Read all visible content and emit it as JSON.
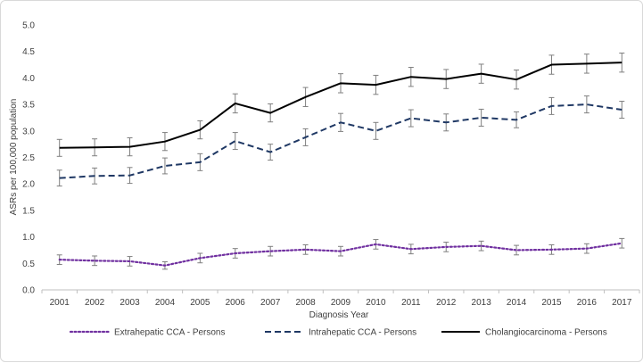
{
  "chart_data": {
    "type": "line",
    "title": "",
    "xlabel": "Diagnosis Year",
    "ylabel": "ASRs per  100,000 population",
    "categories": [
      "2001",
      "2002",
      "2003",
      "2004",
      "2005",
      "2006",
      "2007",
      "2008",
      "2009",
      "2010",
      "2011",
      "2012",
      "2013",
      "2014",
      "2015",
      "2016",
      "2017"
    ],
    "yticks": [
      "0.0",
      "0.5",
      "1.0",
      "1.5",
      "2.0",
      "2.5",
      "3.0",
      "3.5",
      "4.0",
      "4.5",
      "5.0"
    ],
    "ylim": [
      0,
      5
    ],
    "grid": false,
    "legend_position": "bottom",
    "series": [
      {
        "name": "Extrahepatic CCA - Persons",
        "style": "dotted",
        "color": "#7030a0",
        "values": [
          0.57,
          0.55,
          0.54,
          0.46,
          0.6,
          0.69,
          0.73,
          0.76,
          0.73,
          0.86,
          0.77,
          0.81,
          0.83,
          0.75,
          0.76,
          0.78,
          0.88
        ],
        "errors": [
          0.09,
          0.09,
          0.09,
          0.07,
          0.09,
          0.09,
          0.09,
          0.09,
          0.09,
          0.09,
          0.09,
          0.09,
          0.09,
          0.09,
          0.09,
          0.09,
          0.09
        ]
      },
      {
        "name": "Intrahepatic CCA - Persons",
        "style": "dashed",
        "color": "#1f3864",
        "values": [
          2.11,
          2.15,
          2.16,
          2.34,
          2.41,
          2.81,
          2.6,
          2.88,
          3.16,
          3.0,
          3.24,
          3.16,
          3.25,
          3.21,
          3.47,
          3.5,
          3.4
        ],
        "errors": [
          0.15,
          0.15,
          0.15,
          0.15,
          0.16,
          0.16,
          0.15,
          0.16,
          0.17,
          0.16,
          0.16,
          0.16,
          0.16,
          0.15,
          0.16,
          0.16,
          0.16
        ]
      },
      {
        "name": "Cholangiocarcinoma - Persons",
        "style": "solid",
        "color": "#000000",
        "values": [
          2.68,
          2.69,
          2.7,
          2.8,
          3.02,
          3.52,
          3.34,
          3.64,
          3.9,
          3.87,
          4.02,
          3.98,
          4.08,
          3.97,
          4.25,
          4.27,
          4.29
        ],
        "errors": [
          0.16,
          0.16,
          0.17,
          0.17,
          0.17,
          0.18,
          0.17,
          0.18,
          0.18,
          0.18,
          0.18,
          0.18,
          0.18,
          0.18,
          0.18,
          0.18,
          0.18
        ]
      }
    ]
  }
}
